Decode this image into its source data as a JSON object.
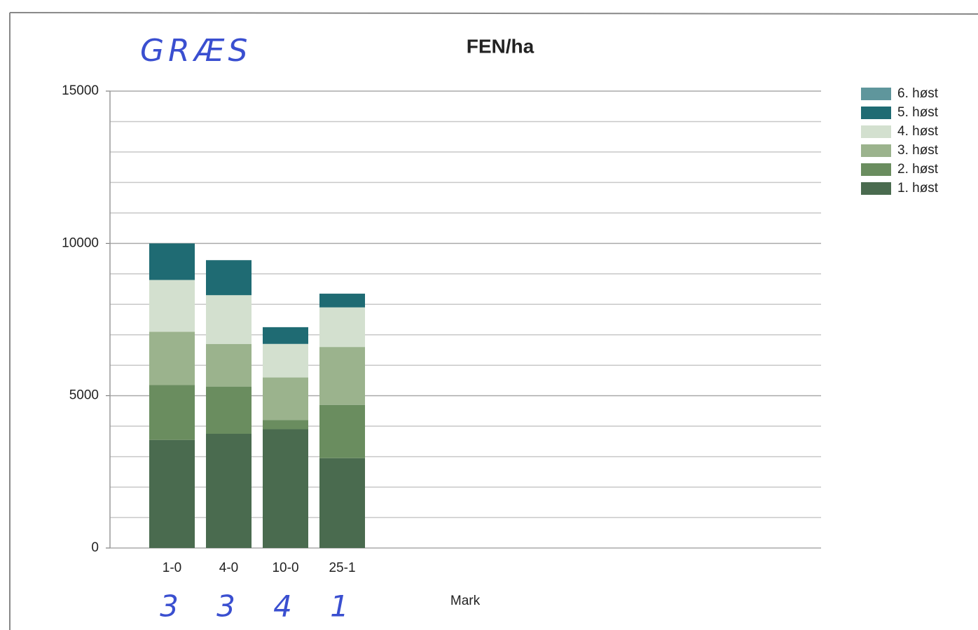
{
  "chart_data": {
    "type": "stacked_bar",
    "title": "FEN/ha",
    "x_label": "Mark",
    "annotations": [
      "GRÆS",
      "3",
      "3",
      "4",
      "1"
    ],
    "categories": [
      "1-0",
      "4-0",
      "10-0",
      "25-1"
    ],
    "series": [
      {
        "name": "1. høst",
        "color": "#4a6b4f",
        "values": [
          3550,
          3750,
          3900,
          2950
        ]
      },
      {
        "name": "2. høst",
        "color": "#6a8d5f",
        "values": [
          1800,
          1550,
          300,
          1750
        ]
      },
      {
        "name": "3. høst",
        "color": "#9bb38d",
        "values": [
          1750,
          1400,
          1400,
          1900
        ]
      },
      {
        "name": "4. høst",
        "color": "#d3e0cf",
        "values": [
          1700,
          1600,
          1100,
          1300
        ]
      },
      {
        "name": "5. høst",
        "color": "#1f6b73",
        "values": [
          1200,
          1150,
          550,
          450
        ]
      },
      {
        "name": "6. høst",
        "color": "#5f969c",
        "values": [
          0,
          0,
          0,
          0
        ]
      }
    ],
    "ylim": [
      0,
      15000
    ],
    "yticks": [
      0,
      5000,
      10000,
      15000
    ],
    "minor_yticks": [
      1000,
      2000,
      3000,
      4000,
      6000,
      7000,
      8000,
      9000,
      11000,
      12000,
      13000,
      14000
    ],
    "grid": true,
    "legend": "right"
  }
}
